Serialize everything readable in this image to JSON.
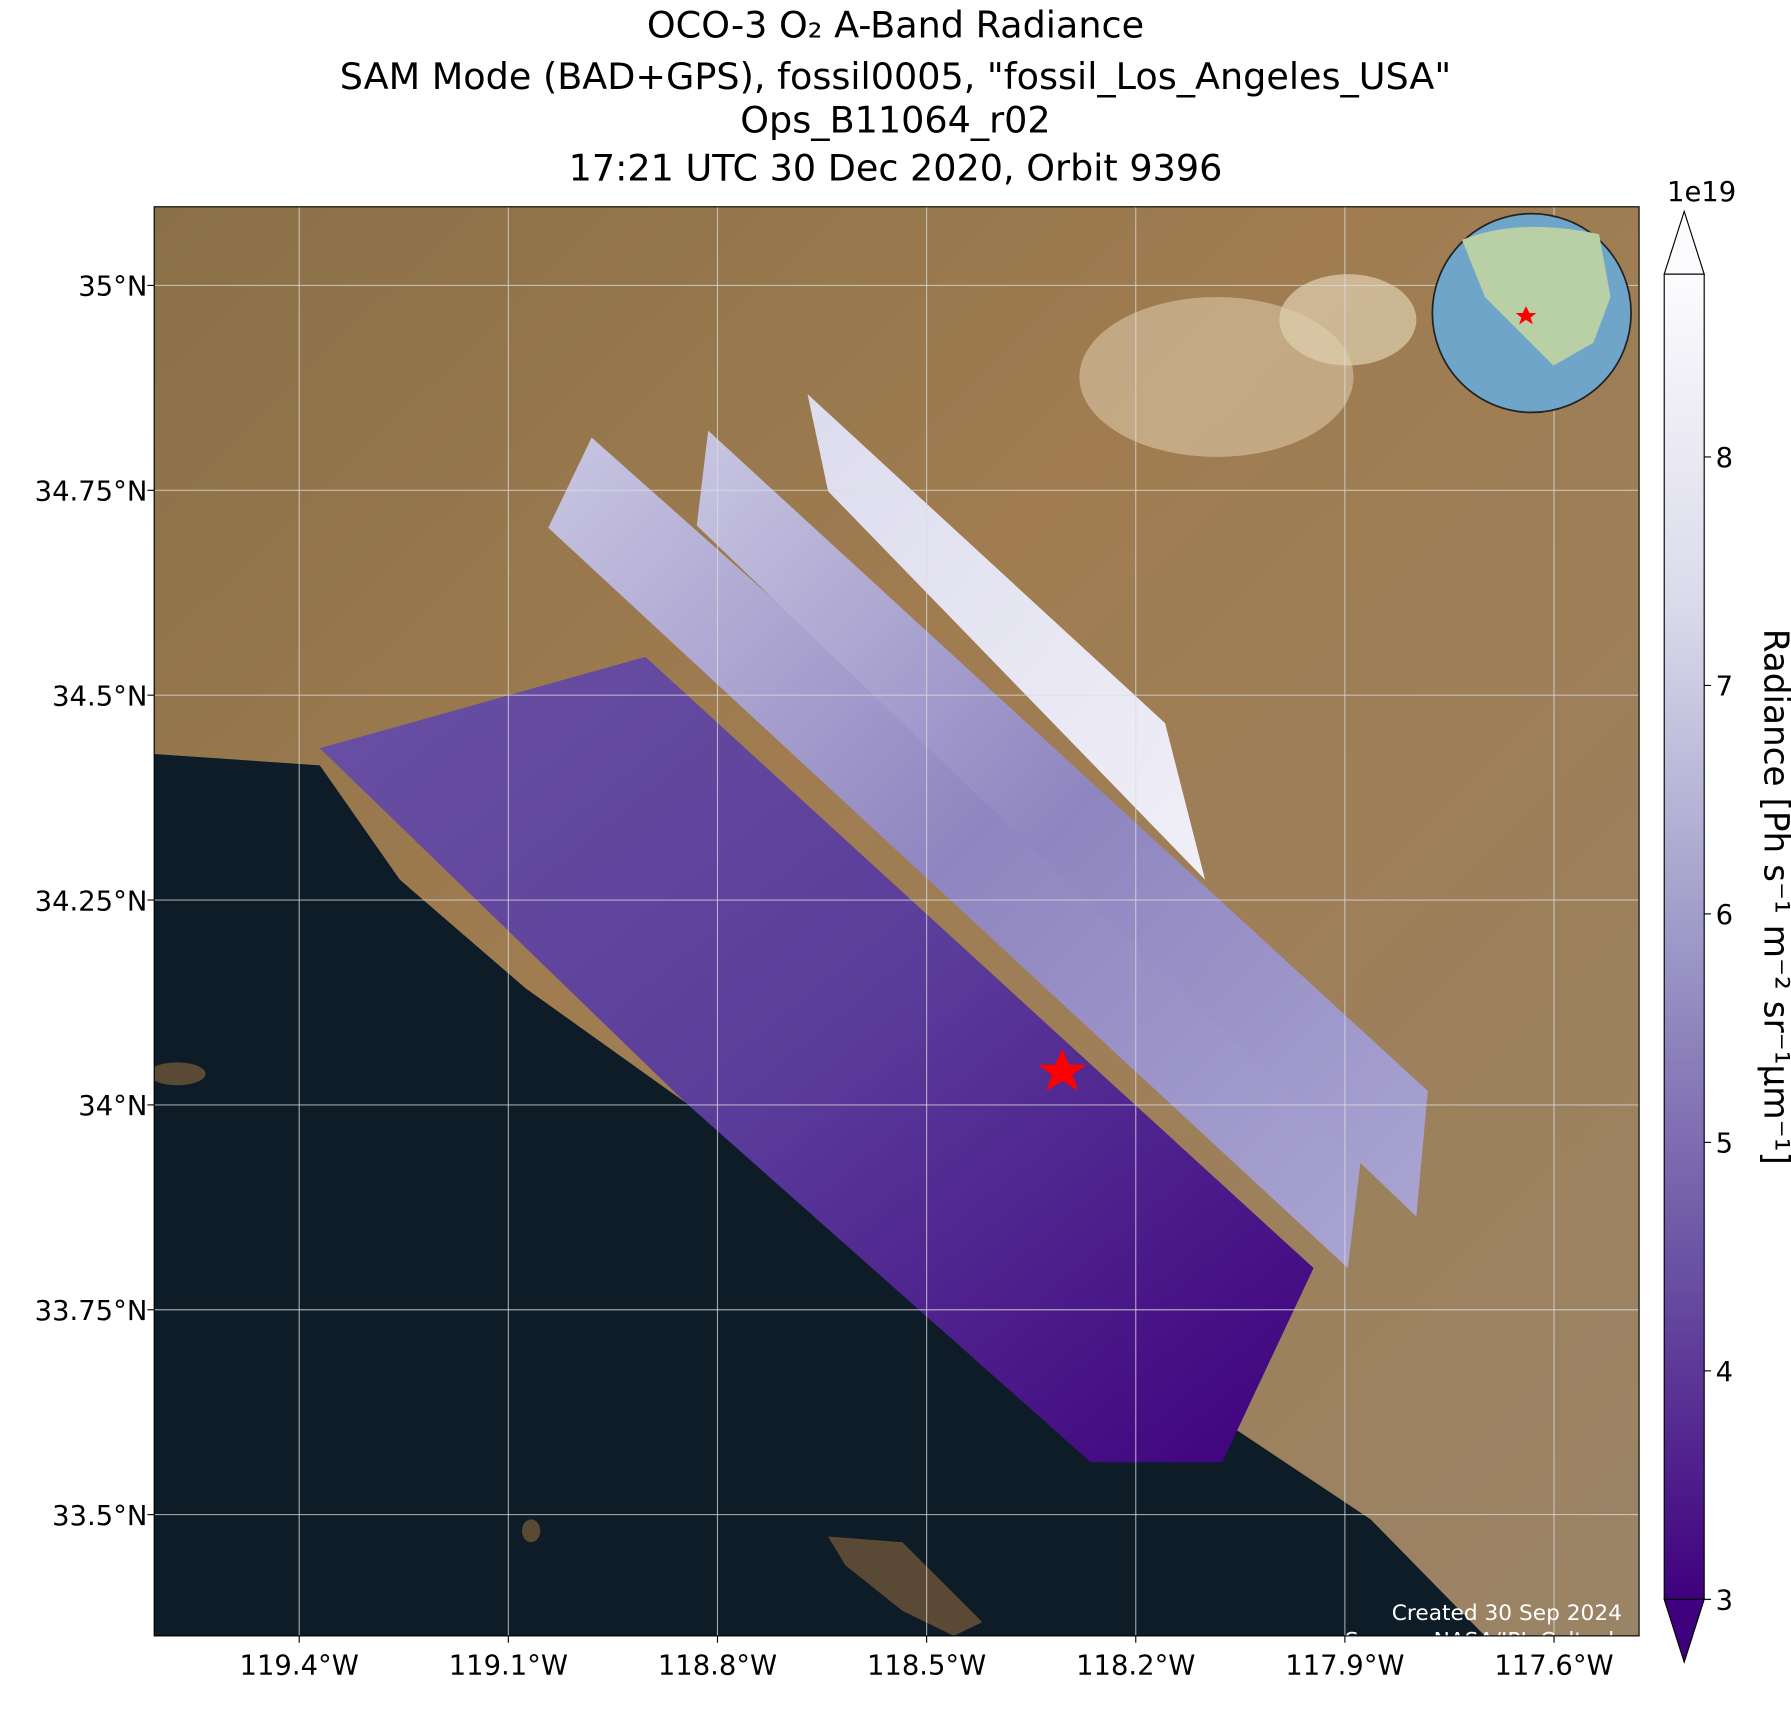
{
  "chart_data": {
    "type": "map",
    "title": [
      "OCO-3 O₂ A-Band Radiance",
      "SAM Mode (BAD+GPS), fossil0005, \"fossil_Los_Angeles_USA\"",
      "Ops_B11064_r02",
      "17:21 UTC 30 Dec 2020, Orbit 9396"
    ],
    "xlim": [
      -119.608,
      -117.478
    ],
    "ylim": [
      33.352,
      35.096
    ],
    "xticks": [
      {
        "value": -119.4,
        "label": "119.4°W"
      },
      {
        "value": -119.1,
        "label": "119.1°W"
      },
      {
        "value": -118.8,
        "label": "118.8°W"
      },
      {
        "value": -118.5,
        "label": "118.5°W"
      },
      {
        "value": -118.2,
        "label": "118.2°W"
      },
      {
        "value": -117.9,
        "label": "117.9°W"
      },
      {
        "value": -117.6,
        "label": "117.6°W"
      }
    ],
    "yticks": [
      {
        "value": 33.5,
        "label": "33.5°N"
      },
      {
        "value": 33.75,
        "label": "33.75°N"
      },
      {
        "value": 34,
        "label": "34°N"
      },
      {
        "value": 34.25,
        "label": "34.25°N"
      },
      {
        "value": 34.5,
        "label": "34.5°N"
      },
      {
        "value": 34.75,
        "label": "34.75°N"
      },
      {
        "value": 35,
        "label": "35°N"
      }
    ],
    "grid": true,
    "colorbar": {
      "label": "Radiance [Ph s⁻¹ m⁻² sr⁻¹μm⁻¹]",
      "multiplier": "1e19",
      "lim": [
        3,
        8.8
      ],
      "ticks": [
        3,
        4,
        5,
        6,
        7,
        8
      ],
      "colors": [
        "#3f007d",
        "#6a51a3",
        "#9e9ac8",
        "#dadaeb",
        "#fcfbfd"
      ]
    },
    "notes": [
      "Created 30 Sep 2024",
      "Source: NASA/JPL-Caltech"
    ]
  }
}
